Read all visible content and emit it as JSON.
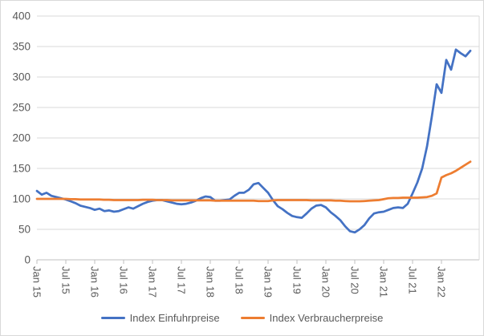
{
  "chart_data": {
    "type": "line",
    "title": "",
    "x_interval": "monthly",
    "x_start_label": "Jan 15",
    "x_end_label": "Jul 22",
    "x_tick_labels": [
      "Jan 15",
      "Jul 15",
      "Jan 16",
      "Jul 16",
      "Jan 17",
      "Jul 17",
      "Jan 18",
      "Jul 18",
      "Jan 19",
      "Jul 19",
      "Jan 20",
      "Jul 20",
      "Jan 21",
      "Jul 21",
      "Jan 22"
    ],
    "y_ticks": [
      0,
      50,
      100,
      150,
      200,
      250,
      300,
      350,
      400
    ],
    "ylim": [
      0,
      400
    ],
    "grid": "horizontal",
    "legend_position": "bottom",
    "axis_text_color": "#595959",
    "gridline_color": "#d9d9d9",
    "axis_line_color": "#bfbfbf",
    "series": [
      {
        "name": "Index Einfuhrpreise",
        "color": "#4472C4",
        "values": [
          113,
          107,
          110,
          105,
          103,
          101,
          99,
          96,
          93,
          89,
          87,
          85,
          82,
          84,
          80,
          81,
          79,
          80,
          83,
          86,
          84,
          88,
          92,
          95,
          97,
          98,
          98,
          96,
          94,
          92,
          91,
          92,
          94,
          97,
          101,
          104,
          103,
          97,
          97,
          98,
          99,
          105,
          110,
          110,
          115,
          124,
          126,
          118,
          110,
          98,
          88,
          83,
          77,
          72,
          70,
          69,
          76,
          84,
          89,
          90,
          86,
          78,
          72,
          65,
          55,
          47,
          45,
          50,
          57,
          68,
          76,
          78,
          79,
          82,
          85,
          86,
          85,
          92,
          109,
          127,
          150,
          186,
          235,
          288,
          274,
          328,
          312,
          345,
          339,
          334,
          343
        ]
      },
      {
        "name": "Index Verbraucherpreise",
        "color": "#ED7D31",
        "values": [
          100,
          100,
          100,
          100,
          100,
          100,
          100,
          99.5,
          99.5,
          99,
          99,
          99,
          99,
          99,
          98.5,
          98.5,
          98,
          98,
          98,
          98,
          98,
          98,
          98.5,
          98.5,
          98.5,
          98,
          98,
          98,
          97.5,
          97.5,
          97.5,
          97.5,
          97.5,
          97.5,
          97.5,
          97.5,
          97.5,
          97,
          97,
          97,
          97,
          97,
          97,
          97,
          97,
          97,
          96.5,
          96.5,
          96.5,
          97.5,
          98,
          98,
          98,
          98,
          98,
          98,
          98,
          97.5,
          97.5,
          97.5,
          97.5,
          97.5,
          97,
          97,
          96.5,
          96,
          96,
          96,
          96.5,
          97,
          97.5,
          98,
          99.5,
          101,
          101.5,
          101.5,
          102,
          102,
          102,
          102,
          102.5,
          103,
          105,
          109,
          135,
          139,
          142,
          146,
          151,
          156,
          161
        ]
      }
    ]
  }
}
